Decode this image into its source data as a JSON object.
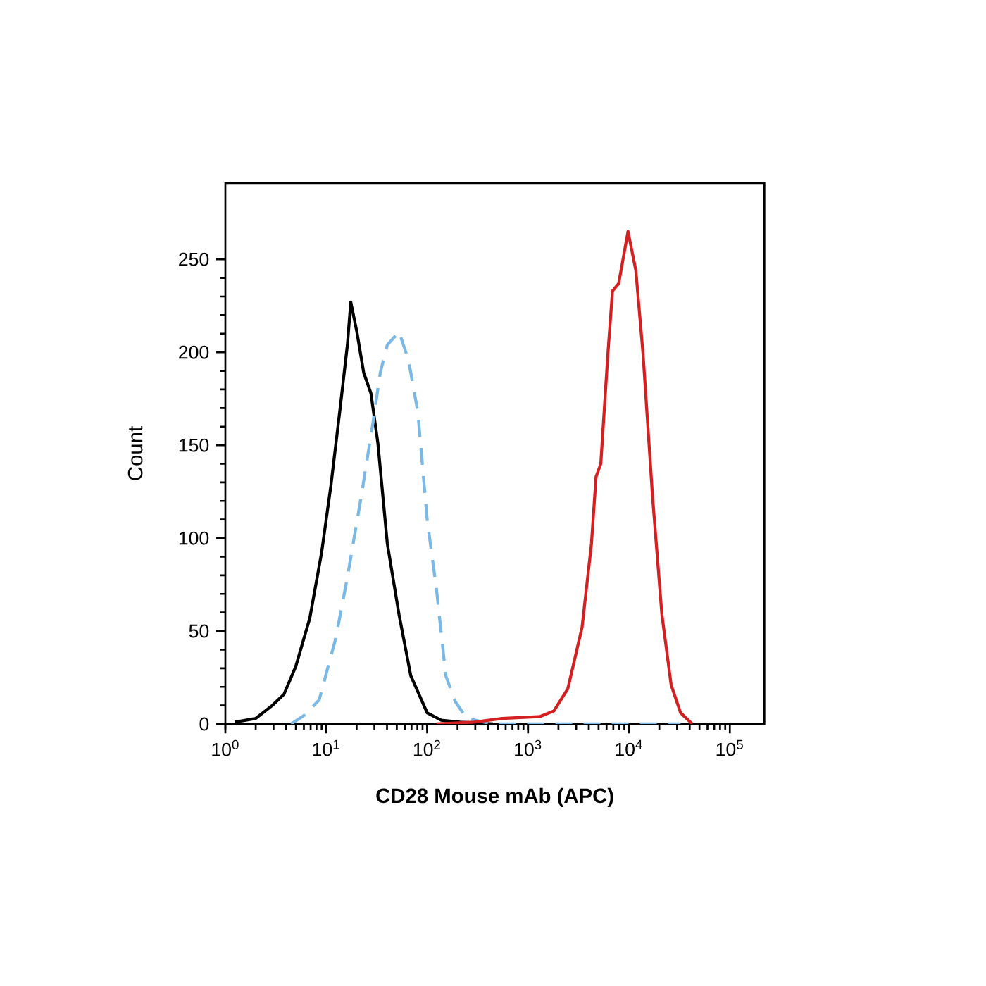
{
  "chart_data": {
    "type": "line",
    "xlabel": "CD28 Mouse mAb (APC)",
    "ylabel": "Count",
    "log": "x",
    "grid": false,
    "marker": "none",
    "xlim": [
      1,
      220000
    ],
    "ylim": [
      0,
      291
    ],
    "xticks": [
      {
        "value": 1,
        "label": "10$^{0}$"
      },
      {
        "value": 10,
        "label": "10$^{1}$"
      },
      {
        "value": 100,
        "label": "10$^{2}$"
      },
      {
        "value": 1000,
        "label": "10$^{3}$"
      },
      {
        "value": 10000,
        "label": "10$^{4}$"
      },
      {
        "value": 100000,
        "label": "10$^{5}$"
      }
    ],
    "yticks": [
      0,
      50,
      100,
      150,
      200,
      250
    ],
    "series": [
      {
        "color": "#000000",
        "line_style": "solid",
        "x": [
          1.24,
          2.0,
          2.92,
          3.81,
          4.99,
          6.87,
          8.98,
          11.1,
          13.8,
          16.2,
          17.5,
          20.1,
          23.5,
          27.7,
          32.5,
          40.3,
          52.6,
          68.8,
          100,
          138,
          212,
          448
        ],
        "values": [
          1,
          3,
          10,
          16,
          31,
          57,
          92,
          128,
          171,
          204,
          227,
          211,
          189,
          178,
          151,
          97,
          59,
          26,
          6,
          2,
          1,
          0
        ]
      },
      {
        "color": "#7ab8e6",
        "line_style": "dashed",
        "x": [
          4.48,
          6.18,
          8.51,
          12.4,
          16.2,
          22.3,
          29.2,
          34.3,
          40.3,
          52.6,
          65.2,
          80.7,
          100,
          124,
          153,
          190,
          248,
          448,
          32500
        ],
        "values": [
          0,
          5,
          13,
          46,
          79,
          123,
          163,
          189,
          204,
          211,
          196,
          168,
          110,
          72,
          26,
          12,
          3,
          0,
          0
        ]
      },
      {
        "color": "#d42020",
        "line_style": "solid",
        "x": [
          124,
          292,
          555,
          1310,
          1800,
          2480,
          3430,
          4250,
          4720,
          5260,
          6180,
          6870,
          7910,
          9790,
          11700,
          13800,
          17100,
          21200,
          26200,
          32500,
          42500
        ],
        "values": [
          0,
          1,
          3,
          4,
          7,
          19,
          52,
          97,
          133,
          140,
          199,
          233,
          237,
          265,
          244,
          199,
          123,
          59,
          21,
          6,
          0
        ]
      }
    ]
  }
}
